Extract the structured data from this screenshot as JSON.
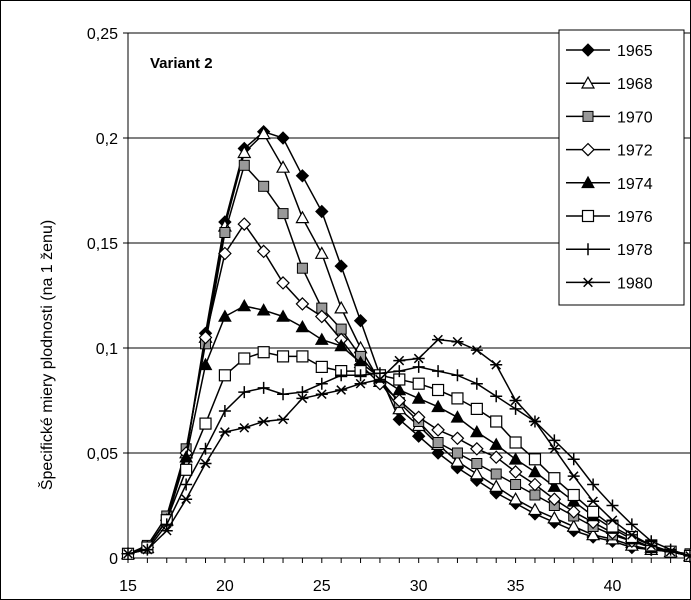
{
  "chart_data": {
    "type": "line",
    "title": "",
    "annotation": "Variant 2",
    "xlabel": "",
    "ylabel": "Špecifické miery plodnosti (na 1 ženu)",
    "xlim": [
      15,
      44
    ],
    "ylim": [
      0,
      0.25
    ],
    "x_ticks": [
      15,
      20,
      25,
      30,
      35,
      40
    ],
    "x_tick_labels": [
      "15",
      "20",
      "25",
      "30",
      "35",
      "40"
    ],
    "y_ticks": [
      0,
      0.05,
      0.1,
      0.15,
      0.2,
      0.25
    ],
    "y_tick_labels": [
      "0",
      "0,05",
      "0,1",
      "0,15",
      "0,2",
      "0,25"
    ],
    "grid": "horizontal",
    "legend_position": "top-right",
    "x": [
      15,
      16,
      17,
      18,
      19,
      20,
      21,
      22,
      23,
      24,
      25,
      26,
      27,
      28,
      29,
      30,
      31,
      32,
      33,
      34,
      35,
      36,
      37,
      38,
      39,
      40,
      41,
      42,
      43,
      44
    ],
    "series": [
      {
        "name": "1965",
        "marker": "diamond-filled",
        "values": [
          0.002,
          0.005,
          0.018,
          0.05,
          0.107,
          0.16,
          0.195,
          0.203,
          0.2,
          0.182,
          0.165,
          0.139,
          0.113,
          0.087,
          0.066,
          0.058,
          0.05,
          0.043,
          0.037,
          0.031,
          0.026,
          0.021,
          0.017,
          0.013,
          0.01,
          0.008,
          0.005,
          0.004,
          0.003,
          0.001
        ]
      },
      {
        "name": "1968",
        "marker": "triangle-open",
        "values": [
          0.002,
          0.005,
          0.018,
          0.05,
          0.105,
          0.158,
          0.193,
          0.202,
          0.186,
          0.162,
          0.145,
          0.119,
          0.1,
          0.084,
          0.071,
          0.063,
          0.054,
          0.046,
          0.04,
          0.034,
          0.028,
          0.023,
          0.019,
          0.015,
          0.011,
          0.009,
          0.006,
          0.004,
          0.003,
          0.001
        ]
      },
      {
        "name": "1970",
        "marker": "square-filled",
        "values": [
          0.002,
          0.006,
          0.02,
          0.052,
          0.102,
          0.155,
          0.187,
          0.177,
          0.164,
          0.138,
          0.119,
          0.109,
          0.096,
          0.085,
          0.074,
          0.065,
          0.055,
          0.05,
          0.045,
          0.04,
          0.035,
          0.03,
          0.025,
          0.02,
          0.015,
          0.011,
          0.008,
          0.005,
          0.003,
          0.002
        ]
      },
      {
        "name": "1972",
        "marker": "diamond-open",
        "values": [
          0.002,
          0.005,
          0.018,
          0.05,
          0.105,
          0.145,
          0.159,
          0.146,
          0.131,
          0.121,
          0.115,
          0.104,
          0.092,
          0.083,
          0.075,
          0.067,
          0.061,
          0.057,
          0.052,
          0.048,
          0.041,
          0.035,
          0.028,
          0.022,
          0.017,
          0.012,
          0.008,
          0.005,
          0.003,
          0.001
        ]
      },
      {
        "name": "1974",
        "marker": "triangle-filled",
        "values": [
          0.002,
          0.005,
          0.018,
          0.048,
          0.092,
          0.115,
          0.12,
          0.118,
          0.115,
          0.11,
          0.104,
          0.101,
          0.093,
          0.086,
          0.08,
          0.076,
          0.072,
          0.067,
          0.06,
          0.054,
          0.047,
          0.041,
          0.034,
          0.027,
          0.02,
          0.014,
          0.009,
          0.005,
          0.003,
          0.001
        ]
      },
      {
        "name": "1976",
        "marker": "square-open",
        "values": [
          0.002,
          0.005,
          0.018,
          0.042,
          0.064,
          0.087,
          0.095,
          0.098,
          0.096,
          0.096,
          0.091,
          0.089,
          0.089,
          0.087,
          0.085,
          0.083,
          0.08,
          0.076,
          0.071,
          0.065,
          0.055,
          0.047,
          0.038,
          0.03,
          0.022,
          0.015,
          0.01,
          0.006,
          0.003,
          0.001
        ]
      },
      {
        "name": "1978",
        "marker": "plus",
        "values": [
          0.002,
          0.004,
          0.016,
          0.035,
          0.052,
          0.07,
          0.079,
          0.081,
          0.078,
          0.079,
          0.083,
          0.087,
          0.087,
          0.088,
          0.089,
          0.091,
          0.089,
          0.087,
          0.083,
          0.077,
          0.071,
          0.065,
          0.056,
          0.047,
          0.035,
          0.025,
          0.016,
          0.008,
          0.004,
          0.001
        ]
      },
      {
        "name": "1980",
        "marker": "asterisk",
        "values": [
          0.002,
          0.004,
          0.013,
          0.028,
          0.045,
          0.06,
          0.062,
          0.065,
          0.066,
          0.076,
          0.078,
          0.08,
          0.083,
          0.085,
          0.094,
          0.095,
          0.104,
          0.103,
          0.099,
          0.092,
          0.075,
          0.065,
          0.052,
          0.039,
          0.027,
          0.018,
          0.011,
          0.006,
          0.003,
          0.001
        ]
      }
    ]
  }
}
